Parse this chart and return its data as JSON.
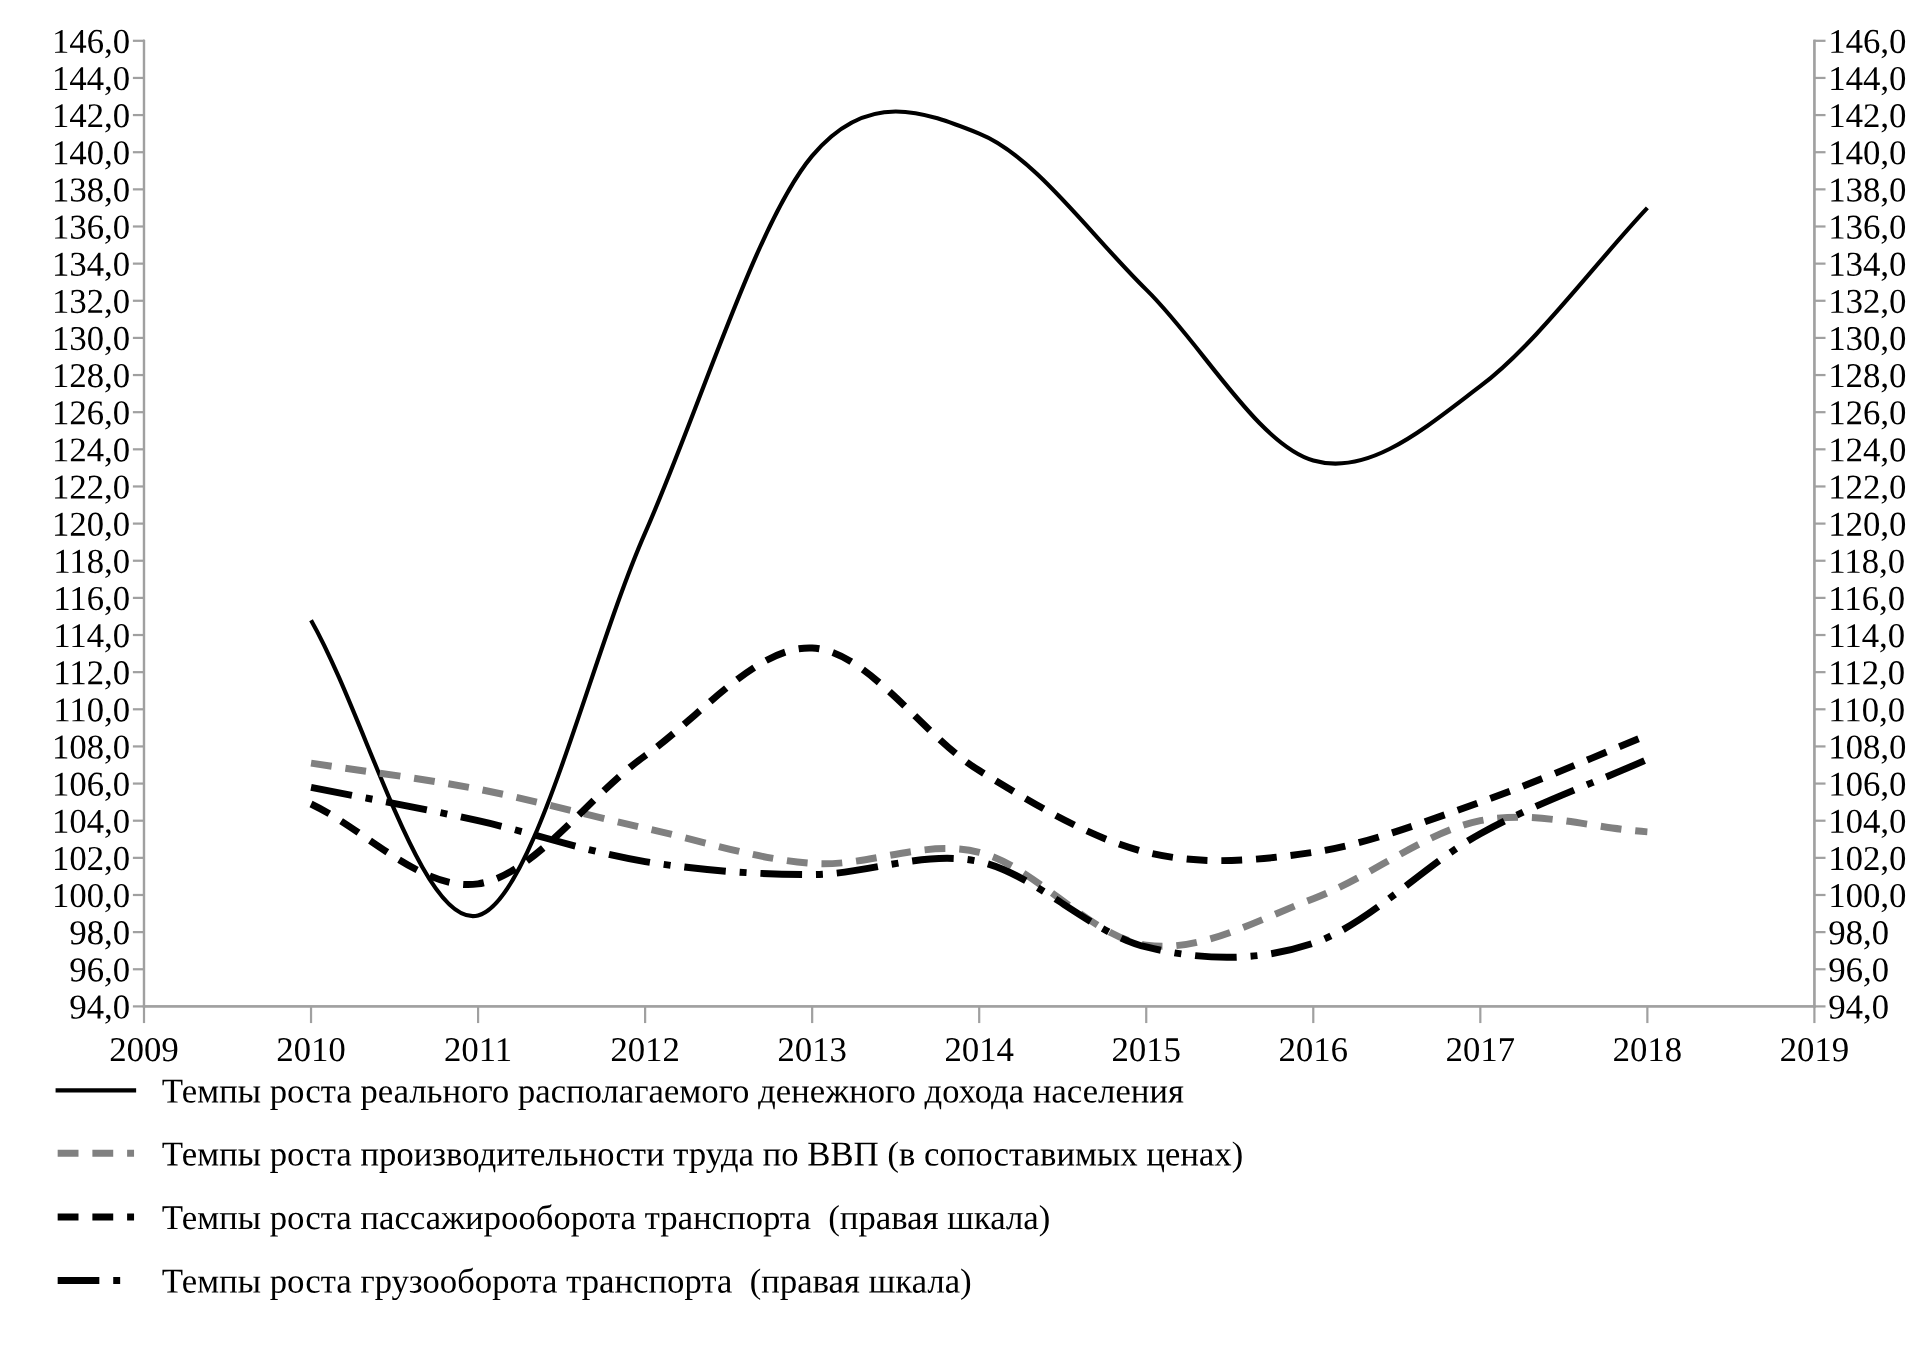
{
  "chart_data": {
    "type": "line",
    "x": [
      2010,
      2011,
      2012,
      2013,
      2014,
      2015,
      2016,
      2017,
      2018
    ],
    "xlim": [
      2009,
      2019
    ],
    "xticks": [
      2009,
      2010,
      2011,
      2012,
      2013,
      2014,
      2015,
      2016,
      2017,
      2018,
      2019
    ],
    "ylim": [
      94,
      146
    ],
    "yticks": [
      {
        "value": 94,
        "label": "94,0"
      },
      {
        "value": 96,
        "label": "96,0"
      },
      {
        "value": 98,
        "label": "98,0"
      },
      {
        "value": 100,
        "label": "100,0"
      },
      {
        "value": 102,
        "label": "102,0"
      },
      {
        "value": 104,
        "label": "104,0"
      },
      {
        "value": 106,
        "label": "106,0"
      },
      {
        "value": 108,
        "label": "108,0"
      },
      {
        "value": 110,
        "label": "110,0"
      },
      {
        "value": 112,
        "label": "112,0"
      },
      {
        "value": 114,
        "label": "114,0"
      },
      {
        "value": 116,
        "label": "116,0"
      },
      {
        "value": 118,
        "label": "118,0"
      },
      {
        "value": 120,
        "label": "120,0"
      },
      {
        "value": 122,
        "label": "122,0"
      },
      {
        "value": 124,
        "label": "124,0"
      },
      {
        "value": 126,
        "label": "126,0"
      },
      {
        "value": 128,
        "label": "128,0"
      },
      {
        "value": 130,
        "label": "130,0"
      },
      {
        "value": 132,
        "label": "132,0"
      },
      {
        "value": 134,
        "label": "134,0"
      },
      {
        "value": 136,
        "label": "136,0"
      },
      {
        "value": 138,
        "label": "138,0"
      },
      {
        "value": 140,
        "label": "140,0"
      },
      {
        "value": 142,
        "label": "142,0"
      },
      {
        "value": 144,
        "label": "144,0"
      },
      {
        "value": 146,
        "label": "146,0"
      }
    ],
    "y2lim": [
      94,
      146
    ],
    "y2ticks": [
      {
        "value": 94,
        "label": "94,0"
      },
      {
        "value": 96,
        "label": "96,0"
      },
      {
        "value": 98,
        "label": "98,0"
      },
      {
        "value": 100,
        "label": "100,0"
      },
      {
        "value": 102,
        "label": "102,0"
      },
      {
        "value": 104,
        "label": "104,0"
      },
      {
        "value": 106,
        "label": "106,0"
      },
      {
        "value": 108,
        "label": "108,0"
      },
      {
        "value": 110,
        "label": "110,0"
      },
      {
        "value": 112,
        "label": "112,0"
      },
      {
        "value": 114,
        "label": "114,0"
      },
      {
        "value": 116,
        "label": "116,0"
      },
      {
        "value": 118,
        "label": "118,0"
      },
      {
        "value": 120,
        "label": "120,0"
      },
      {
        "value": 122,
        "label": "122,0"
      },
      {
        "value": 124,
        "label": "124,0"
      },
      {
        "value": 126,
        "label": "126,0"
      },
      {
        "value": 128,
        "label": "128,0"
      },
      {
        "value": 130,
        "label": "130,0"
      },
      {
        "value": 132,
        "label": "132,0"
      },
      {
        "value": 134,
        "label": "134,0"
      },
      {
        "value": 136,
        "label": "136,0"
      },
      {
        "value": 138,
        "label": "138,0"
      },
      {
        "value": 140,
        "label": "140,0"
      },
      {
        "value": 142,
        "label": "142,0"
      },
      {
        "value": 144,
        "label": "144,0"
      },
      {
        "value": 146,
        "label": "146,0"
      }
    ],
    "grid": false,
    "legend": "bottom",
    "marker": "none",
    "series": [
      {
        "name": "Темпы роста реального располагаемого денежного дохода населения",
        "color": "#000000",
        "line_style": "solid",
        "values": [
          114.8,
          98.9,
          119.5,
          139.8,
          141.0,
          132.6,
          123.4,
          127.4,
          137.0
        ]
      },
      {
        "name": "Темпы роста производительности труда по ВВП (в сопоставимых ценах)",
        "color": "#808080",
        "line_style": "dashed",
        "values": [
          107.1,
          105.7,
          103.6,
          101.7,
          102.3,
          97.3,
          99.8,
          104.0,
          103.4
        ]
      },
      {
        "name": "Темпы роста пассажирооборота транспорта  (правая шкала)",
        "color": "#000000",
        "line_style": "dashed",
        "values": [
          104.9,
          100.6,
          107.5,
          113.3,
          106.7,
          102.3,
          102.3,
          105.0,
          108.6
        ]
      },
      {
        "name": "Темпы роста грузооборота транспорта  (правая шкала)",
        "color": "#000000",
        "line_style": "dashdot",
        "values": [
          105.8,
          104.0,
          101.8,
          101.1,
          101.8,
          97.2,
          97.4,
          103.3,
          107.3
        ]
      }
    ]
  }
}
